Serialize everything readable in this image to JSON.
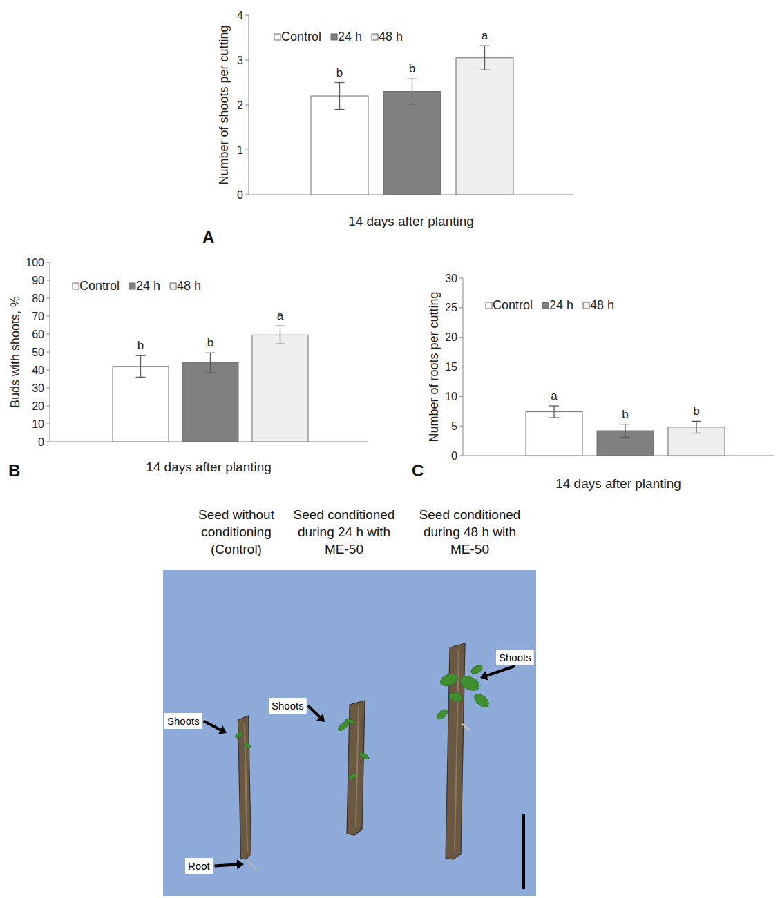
{
  "chart_data": [
    {
      "type": "bar",
      "panel": "A",
      "y_label": "Number of shoots per cutting",
      "categories": [
        "14 days after planting"
      ],
      "ylim": [
        0,
        4
      ],
      "yticks": [
        0,
        1,
        2,
        3,
        4
      ],
      "grid": false,
      "legend": "top-left",
      "series": [
        {
          "name": "Control",
          "color": "#ffffff",
          "values": [
            2.2
          ],
          "errors": [
            0.3
          ],
          "significance": [
            "b"
          ]
        },
        {
          "name": "24 h",
          "color": "#808080",
          "values": [
            2.3
          ],
          "errors": [
            0.28
          ],
          "significance": [
            "b"
          ]
        },
        {
          "name": "48 h",
          "color": "#efefef",
          "values": [
            3.05
          ],
          "errors": [
            0.27
          ],
          "significance": [
            "a"
          ]
        }
      ]
    },
    {
      "type": "bar",
      "panel": "B",
      "y_label": "Buds with shoots, %",
      "categories": [
        "14 days after planting"
      ],
      "ylim": [
        0,
        100
      ],
      "yticks": [
        0,
        10,
        20,
        30,
        40,
        50,
        60,
        70,
        80,
        90,
        100
      ],
      "grid": false,
      "legend": "top-left",
      "series": [
        {
          "name": "Control",
          "color": "#ffffff",
          "values": [
            42
          ],
          "errors": [
            6
          ],
          "significance": [
            "b"
          ]
        },
        {
          "name": "24 h",
          "color": "#808080",
          "values": [
            44
          ],
          "errors": [
            5.5
          ],
          "significance": [
            "b"
          ]
        },
        {
          "name": "48 h",
          "color": "#efefef",
          "values": [
            59.5
          ],
          "errors": [
            5
          ],
          "significance": [
            "a"
          ]
        }
      ]
    },
    {
      "type": "bar",
      "panel": "C",
      "y_label": "Number of roots per cutting",
      "categories": [
        "14 days after planting"
      ],
      "ylim": [
        0,
        30
      ],
      "yticks": [
        0,
        5,
        10,
        15,
        20,
        25,
        30
      ],
      "grid": false,
      "legend": "top-left",
      "series": [
        {
          "name": "Control",
          "color": "#ffffff",
          "values": [
            7.4
          ],
          "errors": [
            1
          ],
          "significance": [
            "a"
          ]
        },
        {
          "name": "24 h",
          "color": "#808080",
          "values": [
            4.2
          ],
          "errors": [
            1.1
          ],
          "significance": [
            "b"
          ]
        },
        {
          "name": "48 h",
          "color": "#efefef",
          "values": [
            4.8
          ],
          "errors": [
            1
          ],
          "significance": [
            "b"
          ]
        }
      ]
    }
  ],
  "photo": {
    "columns": [
      "Seed without conditioning (Control)",
      "Seed conditioned during 24 h with ME-50",
      "Seed conditioned during 48 h with ME-50"
    ],
    "labels": [
      "Shoots",
      "Shoots",
      "Shoots",
      "Root"
    ]
  }
}
